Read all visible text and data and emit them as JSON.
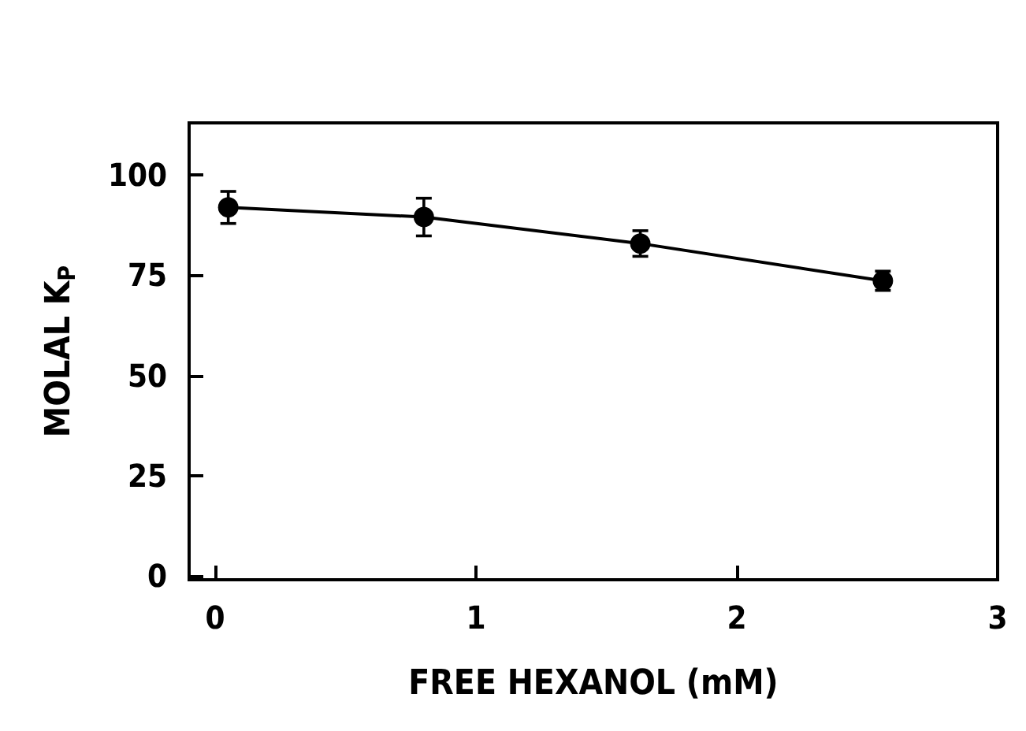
{
  "chart_data": {
    "type": "line",
    "xlabel": "FREE HEXANOL (mM)",
    "ylabel": "MOLAL K$_{P}$",
    "x": [
      0.05,
      0.8,
      1.63,
      2.56
    ],
    "series": [
      {
        "color": "#000000",
        "values": [
          91.9,
          89.5,
          82.9,
          73.6
        ],
        "errors": [
          4,
          4.7,
          3.2,
          2.4
        ]
      }
    ],
    "xlim": [
      -0.1,
      3
    ],
    "xticks": [
      0,
      1,
      2,
      3
    ],
    "ylim": [
      -1,
      113
    ],
    "yticks": [
      0,
      25,
      50,
      75,
      100
    ],
    "marker": "circle",
    "line_style": "solid",
    "grid": false
  }
}
